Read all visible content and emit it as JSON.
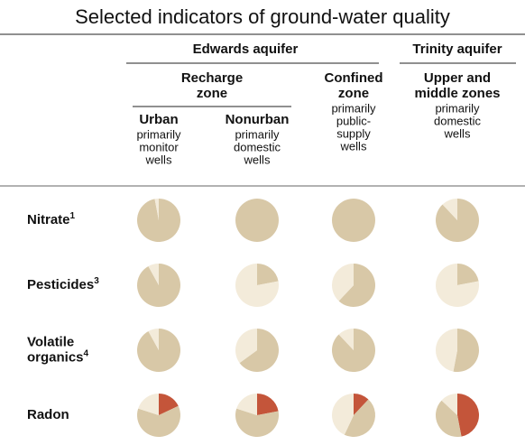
{
  "title": "Selected indicators of ground-water quality",
  "groups": [
    {
      "label": "Edwards aquifer"
    },
    {
      "label": "Trinity aquifer"
    }
  ],
  "subgroups": [
    {
      "lines": [
        "Recharge",
        "zone"
      ]
    },
    {
      "lines": [
        "Confined",
        "zone"
      ]
    },
    {
      "lines": [
        "Upper and",
        "middle zones"
      ]
    }
  ],
  "columns": [
    {
      "label": "Urban",
      "note": [
        "primarily",
        "monitor",
        "wells"
      ]
    },
    {
      "label": "Nonurban",
      "note": [
        "primarily",
        "domestic",
        "wells"
      ]
    },
    {
      "note": [
        "primarily",
        "public-",
        "supply",
        "wells"
      ]
    },
    {
      "note": [
        "primarily",
        "domestic",
        "wells"
      ]
    }
  ],
  "slice_colors": [
    "#c4553a",
    "#d8c8a7",
    "#f3ebda"
  ],
  "rows": [
    {
      "lines": [
        "Nitrate"
      ],
      "sup": "1",
      "cells": [
        [
          0,
          97,
          3
        ],
        [
          0,
          100,
          0
        ],
        [
          0,
          100,
          0
        ],
        [
          0,
          88,
          12
        ]
      ]
    },
    {
      "lines": [
        "Pesticides"
      ],
      "sup": "3",
      "cells": [
        [
          0,
          92,
          8
        ],
        [
          0,
          22,
          78
        ],
        [
          0,
          62,
          38
        ],
        [
          0,
          22,
          78
        ]
      ]
    },
    {
      "lines": [
        "Volatile",
        "organics"
      ],
      "sup": "4",
      "cells": [
        [
          0,
          92,
          8
        ],
        [
          0,
          65,
          35
        ],
        [
          0,
          88,
          12
        ],
        [
          0,
          53,
          47
        ]
      ]
    },
    {
      "lines": [
        "Radon"
      ],
      "sup": "",
      "cells": [
        [
          18,
          62,
          20
        ],
        [
          22,
          58,
          20
        ],
        [
          12,
          45,
          43
        ],
        [
          47,
          40,
          13
        ]
      ]
    }
  ]
}
